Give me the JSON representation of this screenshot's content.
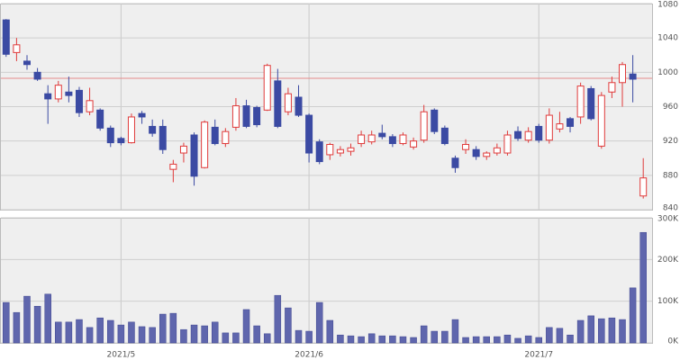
{
  "chart_data": [
    {
      "type": "candlestick",
      "open": [
        1061,
        1023,
        1013,
        1000,
        975,
        969,
        977,
        979,
        954,
        956,
        935,
        923,
        918,
        952,
        937,
        937,
        887,
        906,
        927,
        889,
        936,
        917,
        936,
        961,
        959,
        956,
        990,
        954,
        971,
        950,
        919,
        904,
        906,
        908,
        917,
        919,
        929,
        925,
        917,
        913,
        921,
        956,
        935,
        900,
        910,
        910,
        902,
        906,
        906,
        931,
        921,
        937,
        921,
        934,
        946,
        948,
        981,
        914,
        977,
        988,
        998,
        856
      ],
      "high": [
        1062,
        1040,
        1020,
        1005,
        985,
        990,
        995,
        983,
        982,
        958,
        938,
        925,
        952,
        955,
        945,
        945,
        898,
        918,
        930,
        944,
        945,
        935,
        970,
        968,
        961,
        1010,
        1004,
        982,
        985,
        952,
        922,
        918,
        914,
        917,
        932,
        932,
        939,
        928,
        930,
        924,
        962,
        958,
        938,
        903,
        922,
        914,
        908,
        917,
        932,
        937,
        936,
        940,
        958,
        954,
        948,
        988,
        984,
        977,
        995,
        1012,
        1020,
        900
      ],
      "low": [
        1018,
        1013,
        1003,
        990,
        940,
        965,
        965,
        948,
        950,
        932,
        913,
        915,
        917,
        940,
        925,
        905,
        872,
        895,
        868,
        888,
        915,
        913,
        932,
        935,
        936,
        955,
        935,
        950,
        948,
        895,
        893,
        898,
        902,
        903,
        913,
        916,
        922,
        913,
        915,
        910,
        918,
        928,
        915,
        883,
        905,
        898,
        898,
        903,
        903,
        920,
        918,
        918,
        917,
        930,
        930,
        940,
        944,
        911,
        970,
        960,
        965,
        853
      ],
      "close": [
        1021,
        1032,
        1009,
        992,
        969,
        985,
        973,
        953,
        967,
        935,
        918,
        918,
        948,
        948,
        929,
        910,
        893,
        914,
        879,
        942,
        917,
        931,
        961,
        937,
        939,
        1008,
        937,
        975,
        950,
        906,
        896,
        916,
        910,
        912,
        927,
        927,
        925,
        917,
        927,
        920,
        954,
        931,
        917,
        889,
        916,
        902,
        906,
        912,
        927,
        923,
        931,
        921,
        950,
        940,
        937,
        984,
        946,
        973,
        988,
        1009,
        992,
        877
      ],
      "up_color": "#e03a3a",
      "down_color": "#3b4aa3",
      "reference_line": 993,
      "reference_color": "#e58b8b",
      "ylim": [
        840,
        1080
      ],
      "yticks": [
        840,
        880,
        920,
        960,
        1000,
        1040,
        1080
      ],
      "grid": true
    },
    {
      "type": "bar",
      "categories": [
        null,
        null,
        null,
        null,
        null,
        null,
        null,
        null,
        null,
        null,
        null,
        "2021/5",
        null,
        null,
        null,
        null,
        null,
        null,
        null,
        null,
        null,
        null,
        null,
        null,
        null,
        null,
        null,
        null,
        null,
        "2021/6",
        null,
        null,
        null,
        null,
        null,
        null,
        null,
        null,
        null,
        null,
        null,
        null,
        null,
        null,
        null,
        null,
        null,
        null,
        null,
        null,
        null,
        "2021/7",
        null,
        null,
        null,
        null,
        null,
        null,
        null,
        null,
        null,
        null
      ],
      "values": [
        97000,
        73000,
        112000,
        88000,
        117000,
        50000,
        50000,
        56000,
        37000,
        60000,
        54000,
        43000,
        50000,
        39000,
        37000,
        69000,
        71000,
        32000,
        43000,
        41000,
        50000,
        24000,
        24000,
        80000,
        41000,
        22000,
        114000,
        84000,
        30000,
        28000,
        97000,
        54000,
        19000,
        17000,
        15000,
        22000,
        17000,
        17000,
        15000,
        13000,
        41000,
        28000,
        28000,
        56000,
        13000,
        15000,
        15000,
        15000,
        19000,
        11000,
        17000,
        13000,
        37000,
        35000,
        19000,
        54000,
        65000,
        58000,
        60000,
        56000,
        132000,
        265000
      ],
      "color": "#5f66ad",
      "ylim": [
        0,
        300000
      ],
      "yticks": [
        {
          "value": 0,
          "label": "0K"
        },
        {
          "value": 100000,
          "label": "100K"
        },
        {
          "value": 200000,
          "label": "200K"
        },
        {
          "value": 300000,
          "label": "300K"
        }
      ],
      "grid": true
    }
  ]
}
